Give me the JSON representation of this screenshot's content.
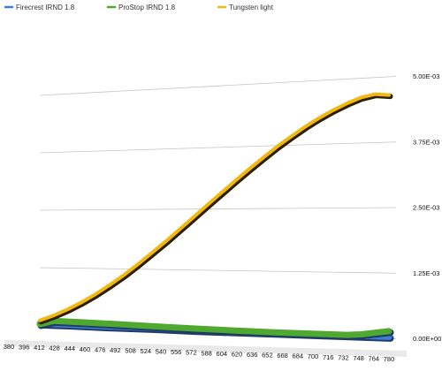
{
  "chart_data": {
    "type": "line",
    "title": "",
    "xlabel": "",
    "ylabel": "",
    "legend_position": "top-left",
    "grid": true,
    "three_d": true,
    "x_ticks": [
      "380",
      "396",
      "412",
      "428",
      "444",
      "460",
      "476",
      "492",
      "508",
      "524",
      "540",
      "556",
      "572",
      "588",
      "604",
      "620",
      "636",
      "652",
      "668",
      "684",
      "700",
      "716",
      "732",
      "748",
      "764",
      "780"
    ],
    "y_ticks": [
      "0.00E+00",
      "1.25E-03",
      "2.50E-03",
      "3.75E-03",
      "5.00E-03"
    ],
    "ylim": [
      0,
      0.005
    ],
    "xlim": [
      380,
      780
    ],
    "series": [
      {
        "name": "Firecrest IRND 1.8",
        "color": "#3d7fd6",
        "x": [
          380,
          412,
          460,
          508,
          556,
          604,
          652,
          700,
          748,
          780
        ],
        "y": [
          3e-05,
          3e-05,
          2e-05,
          2e-05,
          1e-05,
          1e-05,
          1e-05,
          1e-05,
          1e-05,
          1e-05
        ]
      },
      {
        "name": "ProStop IRND 1.8",
        "color": "#4fa82f",
        "x": [
          380,
          396,
          460,
          508,
          556,
          604,
          652,
          700,
          732,
          748,
          764,
          780
        ],
        "y": [
          2e-05,
          0.0001,
          8e-05,
          6e-05,
          4e-05,
          3e-05,
          2e-05,
          2e-05,
          2e-05,
          4e-05,
          8e-05,
          0.00012
        ]
      },
      {
        "name": "Tungsten light",
        "color": "#f2b811",
        "x": [
          380,
          396,
          412,
          428,
          444,
          460,
          476,
          492,
          508,
          524,
          540,
          556,
          572,
          588,
          604,
          620,
          636,
          652,
          668,
          684,
          700,
          716,
          732,
          748,
          764,
          780
        ],
        "y": [
          0.0001,
          0.00022,
          0.00036,
          0.00052,
          0.0007,
          0.0009,
          0.00111,
          0.00134,
          0.00158,
          0.00182,
          0.00207,
          0.00232,
          0.00257,
          0.00281,
          0.00305,
          0.00328,
          0.0035,
          0.00371,
          0.0039,
          0.00408,
          0.00424,
          0.00438,
          0.0045,
          0.0046,
          0.00465,
          0.00462
        ]
      }
    ]
  }
}
